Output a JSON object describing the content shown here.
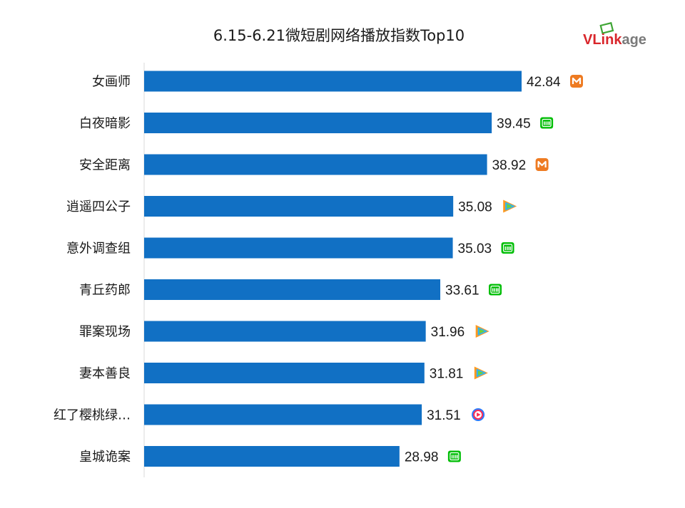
{
  "logo": {
    "text_red": "VLink",
    "text_gray": "age",
    "colors": {
      "red": "#d9262b",
      "gray": "#7a7a7a",
      "green": "#3fa535"
    }
  },
  "chart_data": {
    "type": "bar",
    "orientation": "horizontal",
    "title": "6.15-6.21微短剧网络播放指数Top10",
    "categories": [
      "女画师",
      "白夜暗影",
      "安全距离",
      "逍遥四公子",
      "意外调查组",
      "青丘药郎",
      "罪案现场",
      "妻本善良",
      "红了樱桃绿…",
      "皇城诡案"
    ],
    "values": [
      42.84,
      39.45,
      38.92,
      35.08,
      35.03,
      33.61,
      31.96,
      31.81,
      31.51,
      28.98
    ],
    "value_labels": [
      "42.84",
      "39.45",
      "38.92",
      "35.08",
      "35.03",
      "33.61",
      "31.96",
      "31.81",
      "31.51",
      "28.98"
    ],
    "platforms": [
      "mgtv-icon",
      "iqiyi-icon",
      "mgtv-icon",
      "tencent-video-icon",
      "iqiyi-icon",
      "iqiyi-icon",
      "tencent-video-icon",
      "tencent-video-icon",
      "youku-icon",
      "iqiyi-icon"
    ],
    "xlim": [
      0,
      50
    ],
    "grid": false,
    "legend": "none",
    "bar_color": "#1170c4",
    "platform_colors": {
      "mgtv-icon": "#ee7b22",
      "iqiyi-icon": "#00be06",
      "tencent-video-icon": [
        "#ff9a1f",
        "#2bb2ff",
        "#6ed13d"
      ],
      "youku-icon": [
        "#ff2d55",
        "#2b7bff"
      ]
    }
  }
}
